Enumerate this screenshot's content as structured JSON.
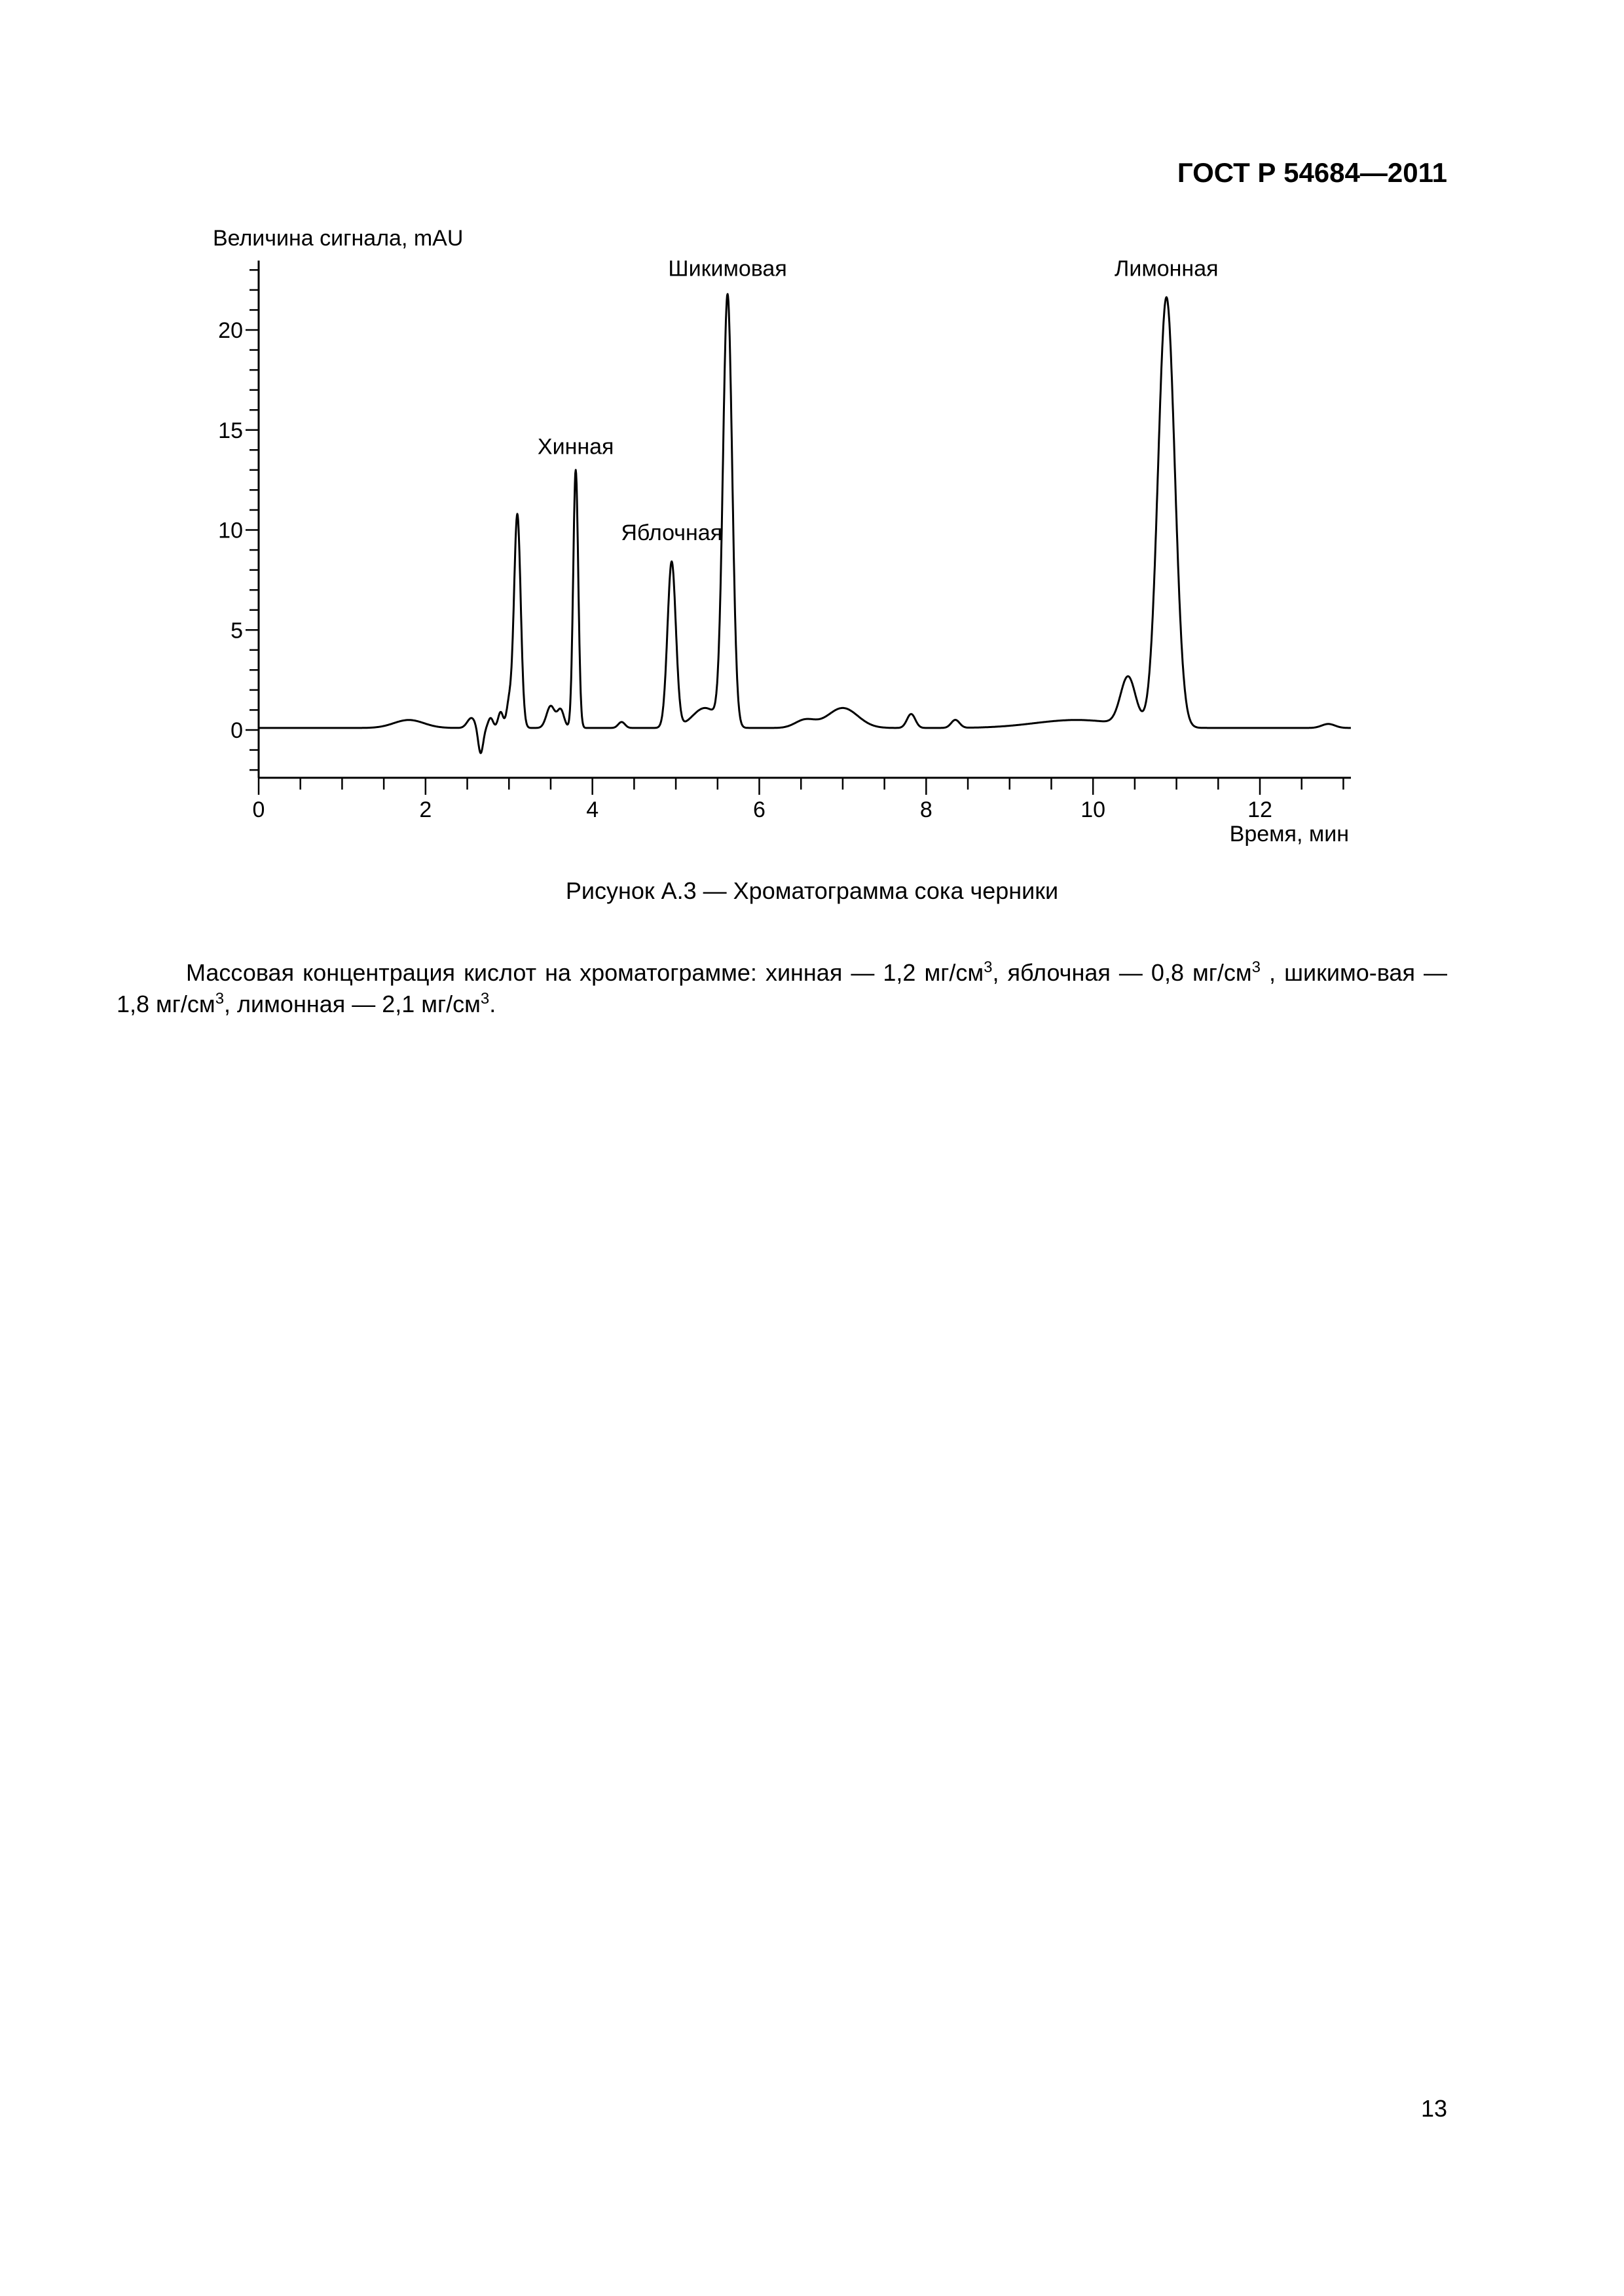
{
  "header": {
    "standard_code": "ГОСТ Р 54684—2011"
  },
  "figure": {
    "caption": "Рисунок А.3 — Хроматограмма сока черники"
  },
  "chart_data": {
    "type": "line",
    "ylabel": "Величина сигнала, mAU",
    "xlabel": "Время, мин",
    "xlim": [
      0,
      13
    ],
    "ylim": [
      -2,
      23.5
    ],
    "x_ticks": [
      0,
      2,
      4,
      6,
      8,
      10,
      12
    ],
    "y_ticks": [
      0,
      5,
      10,
      15,
      20
    ],
    "grid": false,
    "baseline": 0.1,
    "peaks": [
      {
        "x": 1.8,
        "h": 0.4,
        "w": 0.18
      },
      {
        "x": 2.55,
        "h": 0.5,
        "w": 0.05
      },
      {
        "x": 2.66,
        "h": -1.3,
        "w": 0.03
      },
      {
        "x": 2.78,
        "h": 0.5,
        "w": 0.03
      },
      {
        "x": 2.9,
        "h": 0.8,
        "w": 0.03
      },
      {
        "x": 3.0,
        "h": 1.2,
        "w": 0.03
      },
      {
        "x": 3.1,
        "h": 10.7,
        "w": 0.04
      },
      {
        "x": 3.5,
        "h": 1.1,
        "w": 0.05
      },
      {
        "x": 3.62,
        "h": 0.9,
        "w": 0.04
      },
      {
        "x": 3.8,
        "h": 12.9,
        "w": 0.03
      },
      {
        "x": 4.35,
        "h": 0.3,
        "w": 0.04
      },
      {
        "x": 4.95,
        "h": 8.3,
        "w": 0.05
      },
      {
        "x": 5.35,
        "h": 1.0,
        "w": 0.15
      },
      {
        "x": 5.62,
        "h": 21.5,
        "w": 0.055
      },
      {
        "x": 6.55,
        "h": 0.4,
        "w": 0.12
      },
      {
        "x": 7.0,
        "h": 1.0,
        "w": 0.18
      },
      {
        "x": 7.82,
        "h": 0.7,
        "w": 0.05
      },
      {
        "x": 8.35,
        "h": 0.4,
        "w": 0.05
      },
      {
        "x": 9.8,
        "h": 0.4,
        "w": 0.5
      },
      {
        "x": 10.42,
        "h": 2.4,
        "w": 0.09
      },
      {
        "x": 10.88,
        "h": 21.5,
        "w": 0.1
      },
      {
        "x": 12.82,
        "h": 0.2,
        "w": 0.08
      }
    ],
    "annotations": [
      {
        "text": "Хинная",
        "x": 3.8,
        "y": 13.8
      },
      {
        "text": "Яблочная",
        "x": 4.95,
        "y": 9.5
      },
      {
        "text": "Шикимовая",
        "x": 5.62,
        "y": 22.7
      },
      {
        "text": "Лимонная",
        "x": 10.88,
        "y": 22.7
      }
    ]
  },
  "body": {
    "p1_before": "Массовая концентрация кислот на хроматограмме: хинная — 1,2 мг/см",
    "exp": "3",
    "p1_mid1": ", яблочная — 0,8 мг/см",
    "p1_mid2": " , шикимо-вая — 1,8 мг/см",
    "p1_mid3": ", лимонная — 2,1 мг/см",
    "p1_end": "."
  },
  "page_number": "13"
}
